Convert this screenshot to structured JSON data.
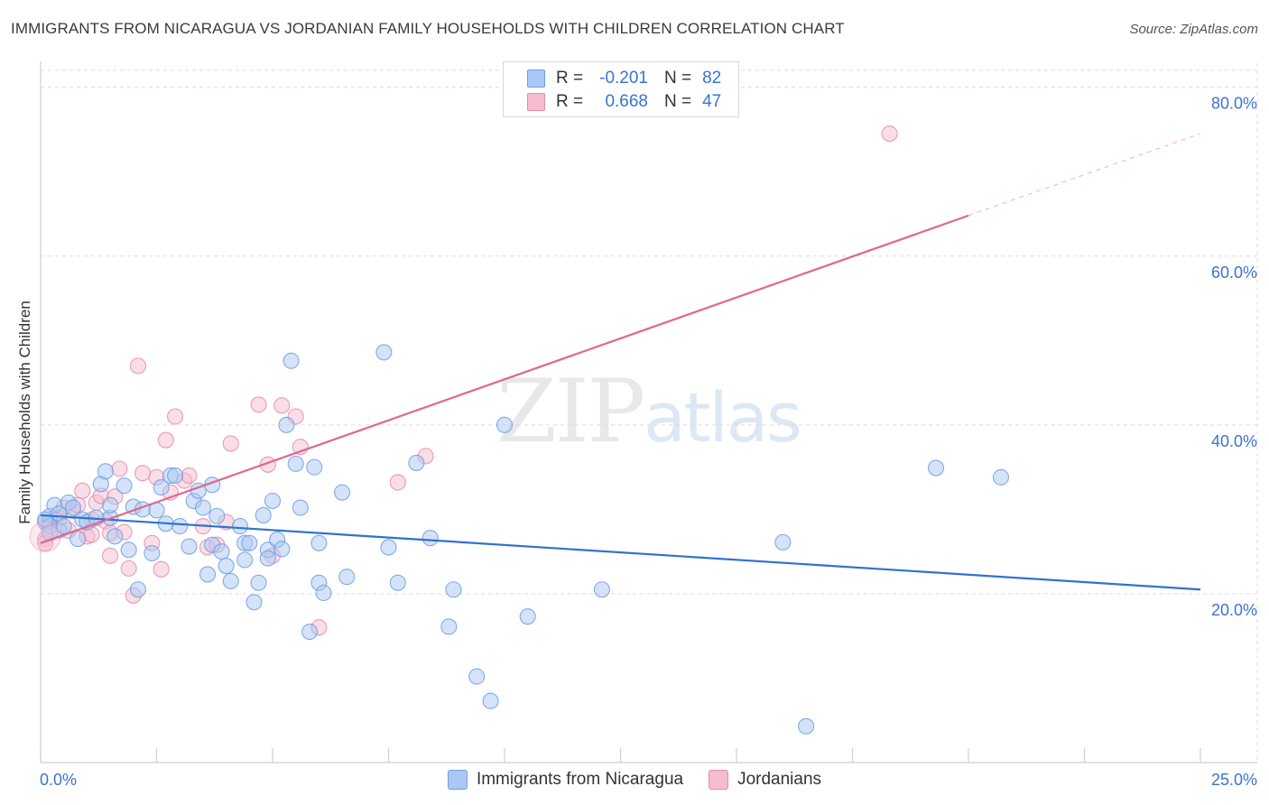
{
  "header": {
    "title": "IMMIGRANTS FROM NICARAGUA VS JORDANIAN FAMILY HOUSEHOLDS WITH CHILDREN CORRELATION CHART",
    "source": "Source: ZipAtlas.com"
  },
  "watermark": {
    "zip": "ZIP",
    "atlas": "atlas"
  },
  "stats_legend": [
    {
      "r_label": "R =",
      "r_value": "-0.201",
      "n_label": "N =",
      "n_value": "82"
    },
    {
      "r_label": "R =",
      "r_value": "0.668",
      "n_label": "N =",
      "n_value": "47"
    }
  ],
  "colors": {
    "blue_fill": "#a9c8f3",
    "blue_stroke": "#6f9de0",
    "blue_line": "#2f72d1",
    "pink_fill": "#f6bdd0",
    "pink_stroke": "#e88bac",
    "pink_line": "#e0668f",
    "grid": "#dcdcdc",
    "axis_label": "#3b73d1"
  },
  "chart_data": {
    "type": "scatter",
    "title": "IMMIGRANTS FROM NICARAGUA VS JORDANIAN FAMILY HOUSEHOLDS WITH CHILDREN CORRELATION CHART",
    "xlabel": "",
    "ylabel": "Family Households with Children",
    "xlim": [
      0,
      25
    ],
    "ylim": [
      0,
      82
    ],
    "x_tick_labels": [
      "0.0%",
      "25.0%"
    ],
    "y_ticks": [
      20,
      40,
      60,
      80
    ],
    "y_tick_labels": [
      "20.0%",
      "40.0%",
      "60.0%",
      "80.0%"
    ],
    "grid": true,
    "series": [
      {
        "name": "Immigrants from Nicaragua",
        "color": "#a9c8f3",
        "points": [
          [
            0.1,
            28.5
          ],
          [
            0.2,
            29.2
          ],
          [
            0.2,
            28.0
          ],
          [
            0.3,
            30.5
          ],
          [
            0.4,
            27.5
          ],
          [
            0.4,
            29.5
          ],
          [
            0.6,
            30.8
          ],
          [
            0.7,
            30.2
          ],
          [
            0.8,
            26.5
          ],
          [
            0.9,
            28.8
          ],
          [
            1.0,
            28.5
          ],
          [
            1.2,
            29.0
          ],
          [
            1.3,
            33.0
          ],
          [
            1.4,
            34.5
          ],
          [
            1.5,
            29.0
          ],
          [
            1.5,
            30.5
          ],
          [
            1.6,
            26.8
          ],
          [
            1.8,
            32.8
          ],
          [
            1.9,
            25.2
          ],
          [
            2.0,
            30.3
          ],
          [
            2.1,
            20.5
          ],
          [
            2.2,
            30.0
          ],
          [
            2.4,
            24.8
          ],
          [
            2.5,
            29.9
          ],
          [
            2.6,
            32.6
          ],
          [
            2.7,
            28.3
          ],
          [
            2.8,
            34.0
          ],
          [
            2.9,
            34.0
          ],
          [
            3.0,
            28.0
          ],
          [
            3.2,
            25.6
          ],
          [
            3.3,
            31.0
          ],
          [
            3.4,
            32.2
          ],
          [
            3.5,
            30.2
          ],
          [
            3.6,
            22.3
          ],
          [
            3.7,
            25.8
          ],
          [
            3.7,
            32.9
          ],
          [
            3.8,
            29.2
          ],
          [
            3.9,
            25.0
          ],
          [
            4.0,
            23.3
          ],
          [
            4.1,
            21.5
          ],
          [
            4.3,
            28.0
          ],
          [
            4.4,
            26.0
          ],
          [
            4.4,
            24.0
          ],
          [
            4.5,
            26.0
          ],
          [
            4.6,
            19.0
          ],
          [
            4.7,
            21.3
          ],
          [
            4.8,
            29.3
          ],
          [
            4.9,
            25.2
          ],
          [
            4.9,
            24.2
          ],
          [
            5.0,
            31.0
          ],
          [
            5.1,
            26.4
          ],
          [
            5.2,
            25.3
          ],
          [
            5.3,
            40.0
          ],
          [
            5.4,
            47.6
          ],
          [
            5.5,
            35.4
          ],
          [
            5.6,
            30.2
          ],
          [
            5.8,
            15.5
          ],
          [
            5.9,
            35.0
          ],
          [
            6.0,
            21.3
          ],
          [
            6.1,
            20.1
          ],
          [
            6.0,
            26.0
          ],
          [
            6.5,
            32.0
          ],
          [
            6.6,
            22.0
          ],
          [
            7.4,
            48.6
          ],
          [
            7.5,
            25.5
          ],
          [
            7.7,
            21.3
          ],
          [
            8.1,
            35.5
          ],
          [
            8.4,
            26.6
          ],
          [
            8.8,
            16.1
          ],
          [
            8.9,
            20.5
          ],
          [
            9.4,
            10.2
          ],
          [
            9.7,
            7.3
          ],
          [
            10.0,
            40.0
          ],
          [
            10.5,
            17.3
          ],
          [
            12.1,
            20.5
          ],
          [
            16.0,
            26.1
          ],
          [
            16.5,
            4.3
          ],
          [
            19.3,
            34.9
          ],
          [
            20.7,
            33.8
          ],
          [
            0.1,
            28.8
          ],
          [
            0.5,
            28.0
          ],
          [
            0.2,
            27.2
          ]
        ]
      },
      {
        "name": "Jordanians",
        "color": "#f6bdd0",
        "points": [
          [
            0.1,
            26.5
          ],
          [
            0.2,
            28.5
          ],
          [
            0.4,
            29.0
          ],
          [
            0.5,
            30.2
          ],
          [
            0.6,
            27.5
          ],
          [
            0.7,
            29.8
          ],
          [
            0.8,
            30.5
          ],
          [
            0.9,
            32.2
          ],
          [
            1.0,
            26.8
          ],
          [
            1.1,
            28.8
          ],
          [
            1.1,
            27.0
          ],
          [
            1.2,
            30.8
          ],
          [
            1.3,
            31.6
          ],
          [
            1.4,
            28.6
          ],
          [
            1.5,
            24.5
          ],
          [
            1.5,
            27.2
          ],
          [
            1.6,
            31.5
          ],
          [
            1.7,
            34.8
          ],
          [
            1.8,
            27.3
          ],
          [
            1.9,
            23.0
          ],
          [
            2.0,
            19.8
          ],
          [
            2.1,
            47.0
          ],
          [
            2.2,
            34.3
          ],
          [
            2.4,
            26.0
          ],
          [
            2.5,
            33.8
          ],
          [
            2.6,
            22.9
          ],
          [
            2.7,
            38.2
          ],
          [
            2.8,
            32.0
          ],
          [
            2.9,
            41.0
          ],
          [
            3.1,
            33.4
          ],
          [
            3.2,
            34.0
          ],
          [
            3.5,
            28.0
          ],
          [
            3.6,
            25.5
          ],
          [
            3.8,
            25.8
          ],
          [
            4.0,
            28.5
          ],
          [
            4.1,
            37.8
          ],
          [
            4.7,
            42.4
          ],
          [
            4.9,
            35.3
          ],
          [
            5.0,
            24.5
          ],
          [
            5.2,
            42.3
          ],
          [
            5.5,
            41.0
          ],
          [
            5.6,
            37.4
          ],
          [
            6.0,
            16.0
          ],
          [
            7.7,
            33.2
          ],
          [
            8.3,
            36.3
          ],
          [
            18.3,
            74.5
          ],
          [
            0.1,
            26.0
          ]
        ]
      }
    ],
    "trend_lines": [
      {
        "series": "Immigrants from Nicaragua",
        "x": [
          0,
          25
        ],
        "y": [
          29.3,
          20.5
        ]
      },
      {
        "series": "Jordanians",
        "x": [
          0,
          20
        ],
        "y": [
          26.0,
          64.8
        ],
        "dashed_extension_to_x": 25,
        "dashed_extension_y": 74.5
      }
    ],
    "legend": [
      "Immigrants from Nicaragua",
      "Jordanians"
    ]
  }
}
